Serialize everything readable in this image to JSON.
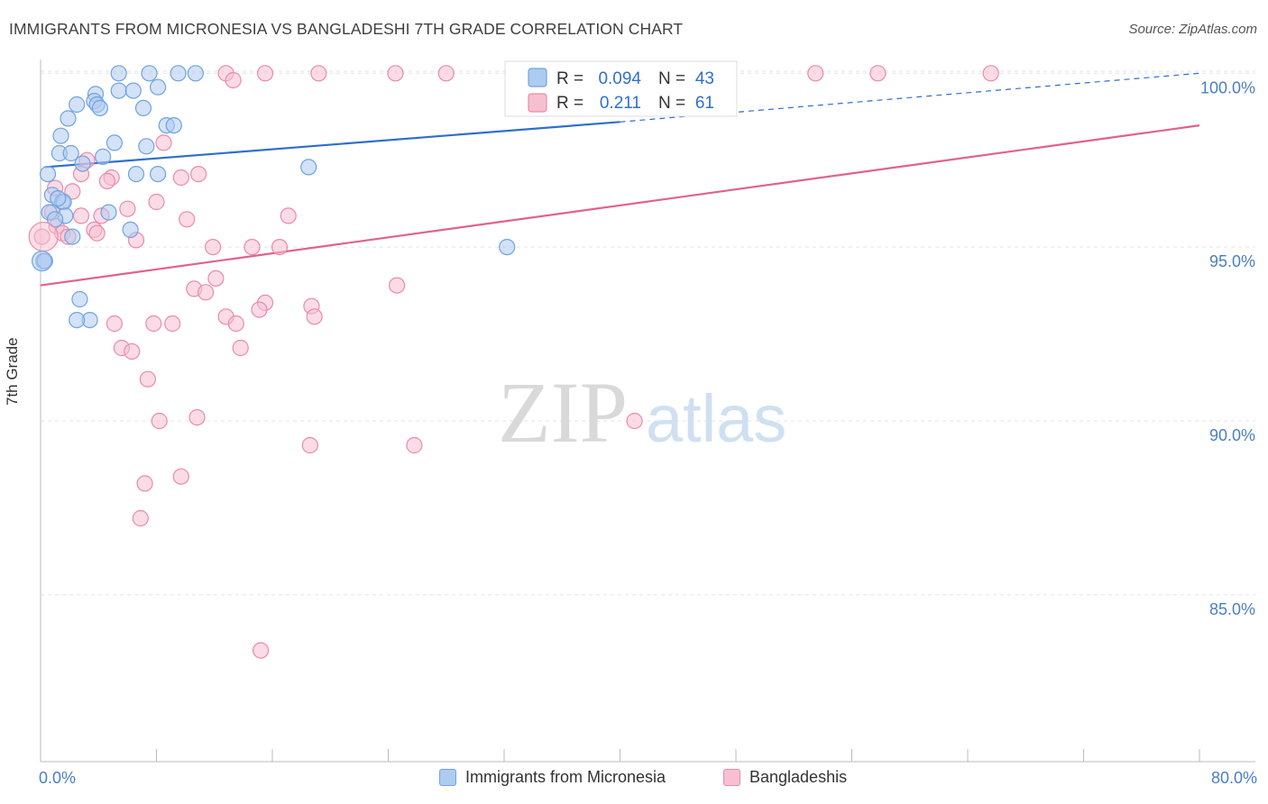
{
  "title": "IMMIGRANTS FROM MICRONESIA VS BANGLADESHI 7TH GRADE CORRELATION CHART",
  "source": "Source: ZipAtlas.com",
  "watermark": {
    "part1": "ZIP",
    "part2": "atlas"
  },
  "colors": {
    "blue": "#6fa3e0",
    "blue_fill": "#aecbf0",
    "blue_line": "#2f6fcc",
    "pink": "#ec8aa9",
    "pink_fill": "#f7c0d1",
    "pink_line": "#e0628c",
    "axis_text": "#4a7fc1"
  },
  "legend": {
    "rows": [
      {
        "r_label": "R =",
        "r_value": "0.094",
        "n_label": "N =",
        "n_value": "43"
      },
      {
        "r_label": "R =",
        "r_value": "0.211",
        "n_label": "N =",
        "n_value": "61"
      }
    ]
  },
  "bottom_legend": {
    "series1": "Immigrants from Micronesia",
    "series2": "Bangladeshis"
  },
  "chart_data": {
    "type": "scatter",
    "title": "IMMIGRANTS FROM MICRONESIA VS BANGLADESHI 7TH GRADE CORRELATION CHART",
    "xlabel": "",
    "ylabel": "7th Grade",
    "xlim": [
      0,
      80
    ],
    "ylim": [
      80.2,
      100.5
    ],
    "x_tick_labels": [
      "0.0%",
      "80.0%"
    ],
    "y_ticks": [
      85,
      90,
      95,
      100
    ],
    "y_tick_labels": [
      "85.0%",
      "90.0%",
      "95.0%",
      "100.0%"
    ],
    "series": [
      {
        "name": "Immigrants from Micronesia",
        "R": 0.094,
        "N": 43,
        "trend": {
          "x0": 0.3,
          "y0": 97.3,
          "x1": 40.0,
          "y1": 98.6,
          "dash_to_x": 80.0,
          "dash_to_y": 100.0
        },
        "points": [
          [
            5.4,
            100.0
          ],
          [
            7.5,
            100.0
          ],
          [
            9.5,
            100.0
          ],
          [
            10.7,
            100.0
          ],
          [
            5.4,
            99.5
          ],
          [
            6.4,
            99.5
          ],
          [
            8.1,
            99.6
          ],
          [
            3.8,
            99.4
          ],
          [
            3.7,
            99.2
          ],
          [
            2.5,
            99.1
          ],
          [
            3.9,
            99.1
          ],
          [
            4.1,
            99.0
          ],
          [
            7.1,
            99.0
          ],
          [
            1.9,
            98.7
          ],
          [
            8.7,
            98.5
          ],
          [
            9.2,
            98.5
          ],
          [
            1.4,
            98.2
          ],
          [
            5.1,
            98.0
          ],
          [
            7.3,
            97.9
          ],
          [
            1.3,
            97.7
          ],
          [
            2.1,
            97.7
          ],
          [
            4.3,
            97.6
          ],
          [
            2.9,
            97.4
          ],
          [
            18.5,
            97.3
          ],
          [
            0.5,
            97.1
          ],
          [
            6.6,
            97.1
          ],
          [
            8.1,
            97.1
          ],
          [
            0.8,
            96.5
          ],
          [
            1.5,
            96.3
          ],
          [
            1.6,
            96.3
          ],
          [
            0.6,
            96.0
          ],
          [
            1.7,
            95.9
          ],
          [
            4.7,
            96.0
          ],
          [
            1.0,
            95.8
          ],
          [
            6.2,
            95.5
          ],
          [
            2.2,
            95.3
          ],
          [
            32.2,
            95.0
          ],
          [
            0.2,
            94.6
          ],
          [
            2.7,
            93.5
          ],
          [
            3.4,
            92.9
          ],
          [
            2.5,
            92.9
          ],
          [
            0.3,
            94.6
          ],
          [
            1.2,
            96.4
          ]
        ]
      },
      {
        "name": "Bangladeshis",
        "R": 0.211,
        "N": 61,
        "trend": {
          "x0": 0.0,
          "y0": 93.9,
          "x1": 80.0,
          "y1": 98.5
        },
        "points": [
          [
            12.8,
            100.0
          ],
          [
            15.5,
            100.0
          ],
          [
            19.2,
            100.0
          ],
          [
            24.5,
            100.0
          ],
          [
            28.0,
            100.0
          ],
          [
            53.5,
            100.0
          ],
          [
            57.8,
            100.0
          ],
          [
            65.6,
            100.0
          ],
          [
            13.3,
            99.8
          ],
          [
            8.5,
            98.0
          ],
          [
            3.2,
            97.5
          ],
          [
            2.8,
            97.1
          ],
          [
            9.7,
            97.0
          ],
          [
            10.9,
            97.1
          ],
          [
            4.9,
            97.0
          ],
          [
            4.6,
            96.9
          ],
          [
            1.0,
            96.7
          ],
          [
            2.2,
            96.6
          ],
          [
            8.0,
            96.3
          ],
          [
            6.0,
            96.1
          ],
          [
            0.8,
            96.0
          ],
          [
            2.8,
            95.9
          ],
          [
            4.2,
            95.9
          ],
          [
            17.1,
            95.9
          ],
          [
            10.1,
            95.8
          ],
          [
            1.1,
            95.6
          ],
          [
            3.7,
            95.5
          ],
          [
            3.9,
            95.4
          ],
          [
            1.5,
            95.4
          ],
          [
            1.9,
            95.3
          ],
          [
            0.1,
            95.3
          ],
          [
            6.6,
            95.2
          ],
          [
            11.9,
            95.0
          ],
          [
            14.6,
            95.0
          ],
          [
            16.5,
            95.0
          ],
          [
            12.1,
            94.1
          ],
          [
            10.6,
            93.8
          ],
          [
            24.6,
            93.9
          ],
          [
            11.4,
            93.7
          ],
          [
            15.5,
            93.4
          ],
          [
            15.1,
            93.2
          ],
          [
            18.7,
            93.3
          ],
          [
            12.8,
            93.0
          ],
          [
            18.9,
            93.0
          ],
          [
            5.1,
            92.8
          ],
          [
            7.8,
            92.8
          ],
          [
            9.1,
            92.8
          ],
          [
            13.5,
            92.8
          ],
          [
            5.6,
            92.1
          ],
          [
            6.3,
            92.0
          ],
          [
            13.8,
            92.1
          ],
          [
            7.4,
            91.2
          ],
          [
            8.2,
            90.0
          ],
          [
            10.8,
            90.1
          ],
          [
            41.0,
            90.0
          ],
          [
            18.6,
            89.3
          ],
          [
            25.8,
            89.3
          ],
          [
            9.7,
            88.4
          ],
          [
            7.2,
            88.2
          ],
          [
            6.9,
            87.2
          ],
          [
            15.2,
            83.4
          ]
        ]
      }
    ]
  }
}
